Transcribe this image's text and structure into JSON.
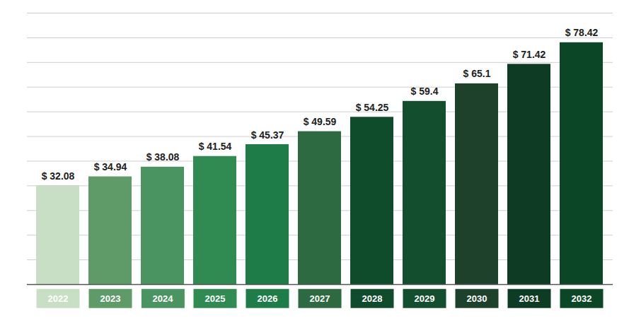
{
  "chart_data": {
    "type": "bar",
    "categories": [
      "2022",
      "2023",
      "2024",
      "2025",
      "2026",
      "2027",
      "2028",
      "2029",
      "2030",
      "2031",
      "2032"
    ],
    "values": [
      32.08,
      34.94,
      38.08,
      41.54,
      45.37,
      49.59,
      54.25,
      59.4,
      65.1,
      71.42,
      78.42
    ],
    "value_labels": [
      "$ 32.08",
      "$ 34.94",
      "$ 38.08",
      "$ 41.54",
      "$ 45.37",
      "$ 49.59",
      "$ 54.25",
      "$ 59.4",
      "$ 65.1",
      "$ 71.42",
      "$ 78.42"
    ],
    "colors": [
      "#c8dfc5",
      "#5f9a69",
      "#4a9462",
      "#2f8b52",
      "#1d7c47",
      "#2d6a42",
      "#0f4c2b",
      "#134e2e",
      "#1d412b",
      "#0e3b23",
      "#0b4627"
    ],
    "ylim": [
      0,
      88
    ],
    "yticks": [
      0,
      8,
      16,
      24,
      32,
      40,
      48,
      56,
      64,
      72,
      80,
      88
    ],
    "grid": true,
    "data_labels": true,
    "tick_labels": "x"
  }
}
